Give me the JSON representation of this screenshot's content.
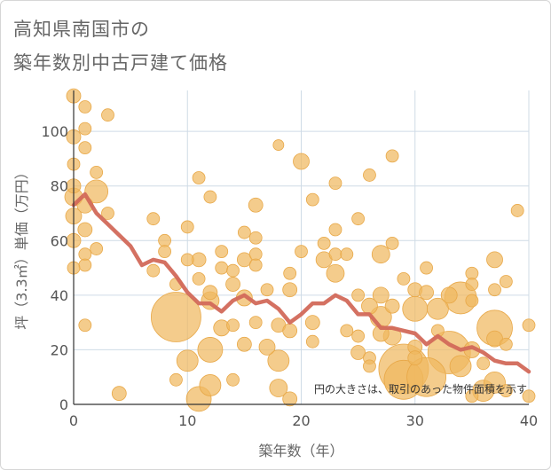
{
  "chart_data": {
    "type": "scatter",
    "title_lines": [
      "高知県南国市の",
      "築年数別中古戸建て価格"
    ],
    "xlabel": "築年数（年）",
    "ylabel": "坪（3.3㎡）単価（万円）",
    "xlim": [
      0,
      40
    ],
    "ylim": [
      0,
      115
    ],
    "xticks": [
      0,
      10,
      20,
      30,
      40
    ],
    "yticks": [
      0,
      20,
      40,
      60,
      80,
      100
    ],
    "grid": true,
    "note": "円の大きさは、取引のあった物件面積を示す",
    "colors": {
      "bubble_fill": "#f0b860",
      "bubble_stroke": "#e8a848",
      "trend_line": "#d2695a",
      "grid": "#cfdbe6",
      "axis": "#333333"
    },
    "series": [
      {
        "name": "trend",
        "type": "line",
        "x": [
          0,
          1,
          2,
          3,
          4,
          5,
          6,
          7,
          8,
          9,
          10,
          11,
          12,
          13,
          14,
          15,
          16,
          17,
          18,
          19,
          20,
          21,
          22,
          23,
          24,
          25,
          26,
          27,
          28,
          29,
          30,
          31,
          32,
          33,
          34,
          35,
          36,
          37,
          38,
          39,
          40
        ],
        "y": [
          73,
          77,
          70,
          66,
          62,
          58,
          51,
          53,
          52,
          47,
          41,
          37,
          37,
          34,
          38,
          40,
          37,
          38,
          35,
          30,
          33,
          37,
          37,
          40,
          38,
          33,
          33,
          28,
          28,
          27,
          26,
          22,
          25,
          22,
          20,
          21,
          19,
          16,
          15,
          15,
          12
        ]
      },
      {
        "name": "transactions",
        "type": "bubble",
        "points": [
          {
            "x": 0,
            "y": 113,
            "s": 8
          },
          {
            "x": 1,
            "y": 109,
            "s": 7
          },
          {
            "x": 3,
            "y": 106,
            "s": 7
          },
          {
            "x": 1,
            "y": 101,
            "s": 7
          },
          {
            "x": 0,
            "y": 98,
            "s": 8
          },
          {
            "x": 1,
            "y": 94,
            "s": 7
          },
          {
            "x": 0,
            "y": 88,
            "s": 7
          },
          {
            "x": 2,
            "y": 85,
            "s": 7
          },
          {
            "x": 0,
            "y": 80,
            "s": 8
          },
          {
            "x": 2,
            "y": 78,
            "s": 13
          },
          {
            "x": 0,
            "y": 76,
            "s": 10
          },
          {
            "x": 1,
            "y": 73,
            "s": 9
          },
          {
            "x": 3,
            "y": 70,
            "s": 7
          },
          {
            "x": 0,
            "y": 69,
            "s": 9
          },
          {
            "x": 1,
            "y": 64,
            "s": 8
          },
          {
            "x": 0,
            "y": 60,
            "s": 8
          },
          {
            "x": 2,
            "y": 57,
            "s": 7
          },
          {
            "x": 1,
            "y": 55,
            "s": 7
          },
          {
            "x": 1,
            "y": 51,
            "s": 7
          },
          {
            "x": 0,
            "y": 50,
            "s": 7
          },
          {
            "x": 1,
            "y": 29,
            "s": 7
          },
          {
            "x": 4,
            "y": 4,
            "s": 8
          },
          {
            "x": 7,
            "y": 68,
            "s": 7
          },
          {
            "x": 8,
            "y": 60,
            "s": 7
          },
          {
            "x": 8,
            "y": 56,
            "s": 7
          },
          {
            "x": 7,
            "y": 49,
            "s": 7
          },
          {
            "x": 9,
            "y": 44,
            "s": 7
          },
          {
            "x": 9,
            "y": 32,
            "s": 28
          },
          {
            "x": 10,
            "y": 65,
            "s": 7
          },
          {
            "x": 10,
            "y": 53,
            "s": 7
          },
          {
            "x": 10,
            "y": 16,
            "s": 12
          },
          {
            "x": 9,
            "y": 9,
            "s": 7
          },
          {
            "x": 11,
            "y": 83,
            "s": 7
          },
          {
            "x": 11,
            "y": 53,
            "s": 8
          },
          {
            "x": 11,
            "y": 46,
            "s": 7
          },
          {
            "x": 11,
            "y": 2,
            "s": 14
          },
          {
            "x": 12,
            "y": 76,
            "s": 7
          },
          {
            "x": 12,
            "y": 41,
            "s": 8
          },
          {
            "x": 12,
            "y": 38,
            "s": 10
          },
          {
            "x": 12,
            "y": 20,
            "s": 14
          },
          {
            "x": 12,
            "y": 7,
            "s": 12
          },
          {
            "x": 13,
            "y": 56,
            "s": 7
          },
          {
            "x": 13,
            "y": 50,
            "s": 7
          },
          {
            "x": 13,
            "y": 28,
            "s": 9
          },
          {
            "x": 14,
            "y": 49,
            "s": 7
          },
          {
            "x": 14,
            "y": 44,
            "s": 8
          },
          {
            "x": 14,
            "y": 29,
            "s": 7
          },
          {
            "x": 14,
            "y": 9,
            "s": 7
          },
          {
            "x": 15,
            "y": 63,
            "s": 7
          },
          {
            "x": 15,
            "y": 53,
            "s": 8
          },
          {
            "x": 15,
            "y": 39,
            "s": 9
          },
          {
            "x": 15,
            "y": 22,
            "s": 8
          },
          {
            "x": 16,
            "y": 73,
            "s": 8
          },
          {
            "x": 16,
            "y": 61,
            "s": 7
          },
          {
            "x": 16,
            "y": 55,
            "s": 7
          },
          {
            "x": 16,
            "y": 51,
            "s": 7
          },
          {
            "x": 16,
            "y": 30,
            "s": 7
          },
          {
            "x": 17,
            "y": 42,
            "s": 7
          },
          {
            "x": 17,
            "y": 21,
            "s": 9
          },
          {
            "x": 18,
            "y": 95,
            "s": 6
          },
          {
            "x": 18,
            "y": 16,
            "s": 12
          },
          {
            "x": 18,
            "y": 6,
            "s": 10
          },
          {
            "x": 18,
            "y": 29,
            "s": 8
          },
          {
            "x": 19,
            "y": 48,
            "s": 7
          },
          {
            "x": 19,
            "y": 42,
            "s": 8
          },
          {
            "x": 19,
            "y": 27,
            "s": 8
          },
          {
            "x": 19,
            "y": 2,
            "s": 8
          },
          {
            "x": 20,
            "y": 89,
            "s": 9
          },
          {
            "x": 20,
            "y": 56,
            "s": 7
          },
          {
            "x": 21,
            "y": 75,
            "s": 7
          },
          {
            "x": 21,
            "y": 30,
            "s": 8
          },
          {
            "x": 21,
            "y": 23,
            "s": 7
          },
          {
            "x": 22,
            "y": 59,
            "s": 7
          },
          {
            "x": 22,
            "y": 53,
            "s": 9
          },
          {
            "x": 23,
            "y": 81,
            "s": 7
          },
          {
            "x": 23,
            "y": 64,
            "s": 7
          },
          {
            "x": 23,
            "y": 55,
            "s": 7
          },
          {
            "x": 23,
            "y": 48,
            "s": 10
          },
          {
            "x": 24,
            "y": 55,
            "s": 7
          },
          {
            "x": 24,
            "y": 27,
            "s": 7
          },
          {
            "x": 25,
            "y": 68,
            "s": 7
          },
          {
            "x": 25,
            "y": 40,
            "s": 7
          },
          {
            "x": 25,
            "y": 25,
            "s": 7
          },
          {
            "x": 25,
            "y": 19,
            "s": 8
          },
          {
            "x": 26,
            "y": 84,
            "s": 7
          },
          {
            "x": 26,
            "y": 36,
            "s": 9
          },
          {
            "x": 26,
            "y": 17,
            "s": 7
          },
          {
            "x": 26,
            "y": 14,
            "s": 7
          },
          {
            "x": 27,
            "y": 55,
            "s": 10
          },
          {
            "x": 27,
            "y": 40,
            "s": 9
          },
          {
            "x": 27,
            "y": 32,
            "s": 12
          },
          {
            "x": 27,
            "y": 26,
            "s": 9
          },
          {
            "x": 28,
            "y": 91,
            "s": 7
          },
          {
            "x": 28,
            "y": 59,
            "s": 7
          },
          {
            "x": 28,
            "y": 36,
            "s": 8
          },
          {
            "x": 28,
            "y": 25,
            "s": 10
          },
          {
            "x": 29,
            "y": 46,
            "s": 7
          },
          {
            "x": 29,
            "y": 13,
            "s": 28
          },
          {
            "x": 29,
            "y": 9,
            "s": 22
          },
          {
            "x": 30,
            "y": 42,
            "s": 8
          },
          {
            "x": 30,
            "y": 35,
            "s": 14
          },
          {
            "x": 30,
            "y": 21,
            "s": 8
          },
          {
            "x": 30,
            "y": 17,
            "s": 8
          },
          {
            "x": 31,
            "y": 50,
            "s": 7
          },
          {
            "x": 31,
            "y": 41,
            "s": 8
          },
          {
            "x": 31,
            "y": 10,
            "s": 22
          },
          {
            "x": 32,
            "y": 35,
            "s": 12
          },
          {
            "x": 32,
            "y": 27,
            "s": 7
          },
          {
            "x": 33,
            "y": 40,
            "s": 9
          },
          {
            "x": 33,
            "y": 19,
            "s": 24
          },
          {
            "x": 34,
            "y": 39,
            "s": 18
          },
          {
            "x": 34,
            "y": 14,
            "s": 12
          },
          {
            "x": 35,
            "y": 48,
            "s": 7
          },
          {
            "x": 35,
            "y": 44,
            "s": 7
          },
          {
            "x": 35,
            "y": 38,
            "s": 7
          },
          {
            "x": 35,
            "y": 20,
            "s": 9
          },
          {
            "x": 35,
            "y": 3,
            "s": 7
          },
          {
            "x": 36,
            "y": 5,
            "s": 12
          },
          {
            "x": 36,
            "y": 15,
            "s": 7
          },
          {
            "x": 37,
            "y": 53,
            "s": 9
          },
          {
            "x": 37,
            "y": 42,
            "s": 7
          },
          {
            "x": 37,
            "y": 28,
            "s": 20
          },
          {
            "x": 37,
            "y": 24,
            "s": 9
          },
          {
            "x": 37,
            "y": 8,
            "s": 12
          },
          {
            "x": 38,
            "y": 45,
            "s": 7
          },
          {
            "x": 38,
            "y": 22,
            "s": 7
          },
          {
            "x": 38,
            "y": 5,
            "s": 7
          },
          {
            "x": 39,
            "y": 71,
            "s": 7
          },
          {
            "x": 40,
            "y": 29,
            "s": 7
          },
          {
            "x": 40,
            "y": 3,
            "s": 7
          }
        ]
      }
    ]
  }
}
